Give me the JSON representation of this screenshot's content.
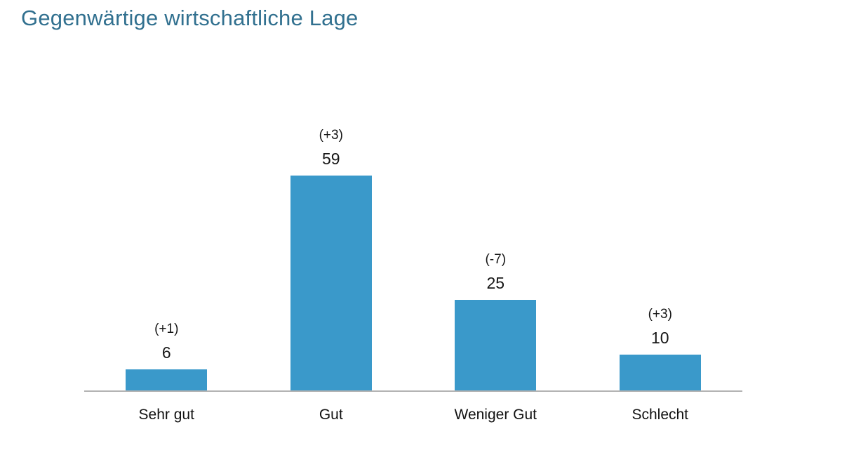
{
  "title": "Gegenwärtige wirtschaftliche Lage",
  "colors": {
    "bar": "#3A99CA",
    "title": "#31708F",
    "axis": "#B3B3B3",
    "text": "#161616"
  },
  "chart_data": {
    "type": "bar",
    "title": "Gegenwärtige wirtschaftliche Lage",
    "categories": [
      "Sehr gut",
      "Gut",
      "Weniger Gut",
      "Schlecht"
    ],
    "values": [
      6,
      59,
      25,
      10
    ],
    "deltas": [
      "(+1)",
      "(+3)",
      "(-7)",
      "(+3)"
    ],
    "xlabel": "",
    "ylabel": "",
    "ylim": [
      0,
      65
    ],
    "grid": false,
    "legend": false,
    "value_labels_position": "above-bar",
    "delta_labels_position": "above-value"
  }
}
